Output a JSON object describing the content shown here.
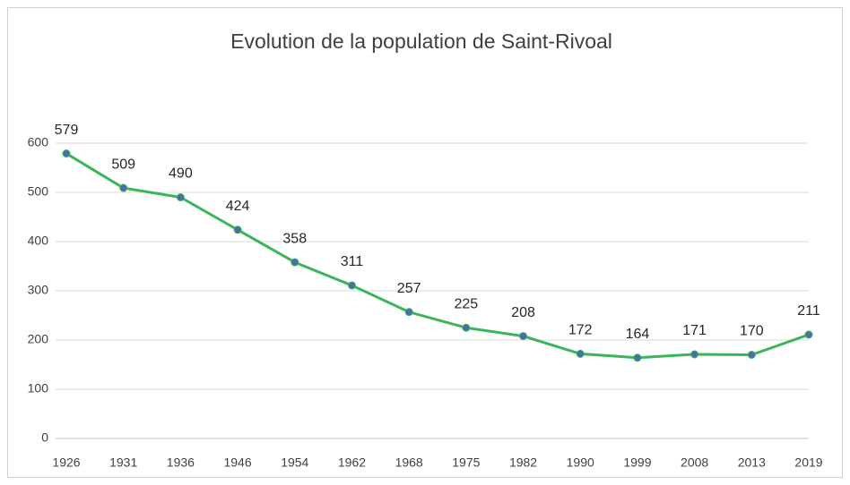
{
  "chart_data": {
    "type": "line",
    "title": "Evolution de la population de Saint-Rivoal",
    "categories": [
      "1926",
      "1931",
      "1936",
      "1946",
      "1954",
      "1962",
      "1968",
      "1975",
      "1982",
      "1990",
      "1999",
      "2008",
      "2013",
      "2019"
    ],
    "values": [
      579,
      509,
      490,
      424,
      358,
      311,
      257,
      225,
      208,
      172,
      164,
      171,
      170,
      211
    ],
    "color": "#3cb55a",
    "marker_color": "#4a6fa5",
    "ylim": [
      0,
      600
    ],
    "yticks": [
      0,
      100,
      200,
      300,
      400,
      500,
      600
    ],
    "grid": true,
    "data_labels": true
  }
}
